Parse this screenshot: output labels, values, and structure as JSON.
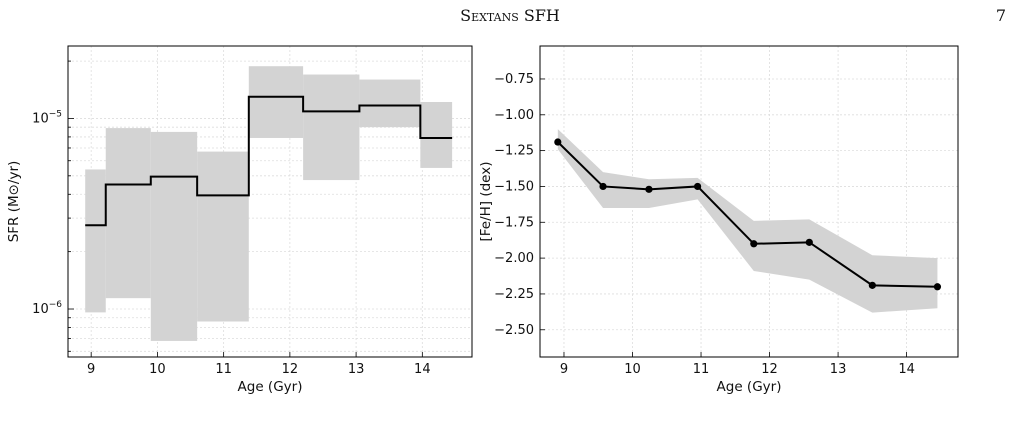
{
  "page": {
    "running_title": "Sextans SFH",
    "page_number": "7"
  },
  "chart_data": [
    {
      "type": "step",
      "xlabel": "Age (Gyr)",
      "ylabel": "SFR (M⊙/yr)",
      "yscale": "log",
      "xlim": [
        8.65,
        14.75
      ],
      "ylim": [
        5.6e-07,
        2.4e-05
      ],
      "grid": true,
      "x_ticks": [
        9,
        10,
        11,
        12,
        13,
        14
      ],
      "y_ticks": [
        {
          "value": 1e-05,
          "base": "10",
          "exp": "−5"
        },
        {
          "value": 1e-06,
          "base": "10",
          "exp": "−6"
        }
      ],
      "bins": [
        {
          "x0": 8.91,
          "x1": 9.22,
          "value": 2.75e-06,
          "low": 9.6e-07,
          "high": 5.4e-06
        },
        {
          "x0": 9.22,
          "x1": 9.9,
          "value": 4.5e-06,
          "low": 1.14e-06,
          "high": 8.9e-06
        },
        {
          "x0": 9.9,
          "x1": 10.6,
          "value": 4.95e-06,
          "low": 6.8e-07,
          "high": 8.5e-06
        },
        {
          "x0": 10.6,
          "x1": 11.38,
          "value": 3.95e-06,
          "low": 8.6e-07,
          "high": 6.7e-06
        },
        {
          "x0": 11.38,
          "x1": 12.2,
          "value": 1.3e-05,
          "low": 7.9e-06,
          "high": 1.88e-05
        },
        {
          "x0": 12.2,
          "x1": 13.05,
          "value": 1.09e-05,
          "low": 4.75e-06,
          "high": 1.7e-05
        },
        {
          "x0": 13.05,
          "x1": 13.97,
          "value": 1.17e-05,
          "low": 9e-06,
          "high": 1.6e-05
        },
        {
          "x0": 13.97,
          "x1": 14.45,
          "value": 7.9e-06,
          "low": 5.5e-06,
          "high": 1.22e-05
        }
      ]
    },
    {
      "type": "line",
      "xlabel": "Age (Gyr)",
      "ylabel": "[Fe/H] (dex)",
      "xlim": [
        8.65,
        14.75
      ],
      "ylim": [
        -2.69,
        -0.52
      ],
      "grid": true,
      "x_ticks": [
        9,
        10,
        11,
        12,
        13,
        14
      ],
      "y_ticks": [
        -0.75,
        -1.0,
        -1.25,
        -1.5,
        -1.75,
        -2.0,
        -2.25,
        -2.5
      ],
      "y_tick_labels": [
        "−0.75",
        "−1.00",
        "−1.25",
        "−1.50",
        "−1.75",
        "−2.00",
        "−2.25",
        "−2.50"
      ],
      "points": [
        {
          "x": 8.91,
          "y": -1.19,
          "low": -1.24,
          "high": -1.1
        },
        {
          "x": 9.57,
          "y": -1.5,
          "low": -1.65,
          "high": -1.4
        },
        {
          "x": 10.24,
          "y": -1.52,
          "low": -1.65,
          "high": -1.45
        },
        {
          "x": 10.95,
          "y": -1.5,
          "low": -1.59,
          "high": -1.44
        },
        {
          "x": 11.77,
          "y": -1.9,
          "low": -2.09,
          "high": -1.74
        },
        {
          "x": 12.58,
          "y": -1.89,
          "low": -2.15,
          "high": -1.73
        },
        {
          "x": 13.5,
          "y": -2.19,
          "low": -2.38,
          "high": -1.98
        },
        {
          "x": 14.45,
          "y": -2.2,
          "low": -2.35,
          "high": -2.0
        }
      ]
    }
  ]
}
